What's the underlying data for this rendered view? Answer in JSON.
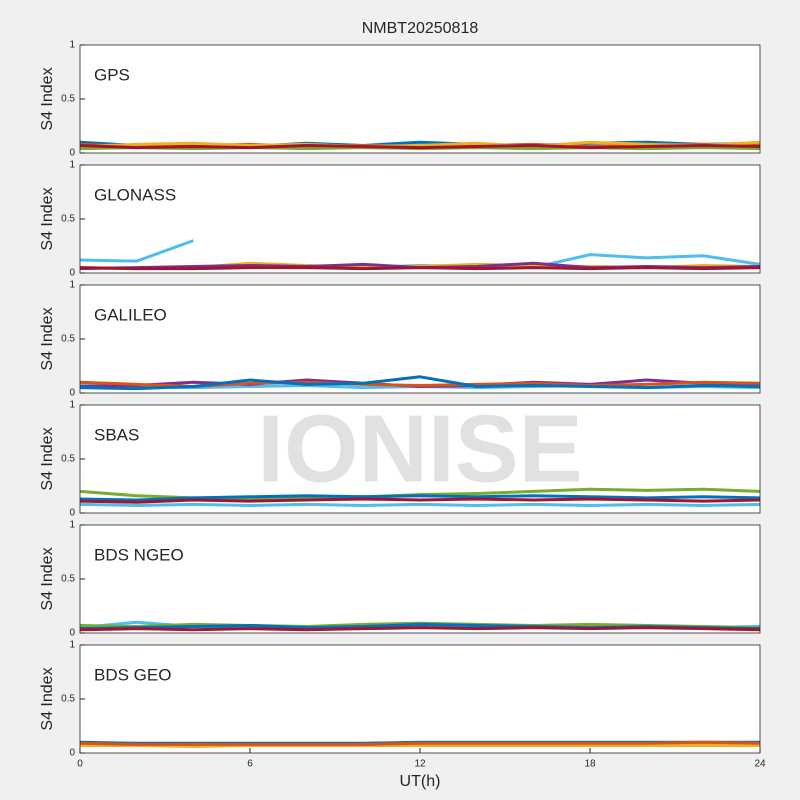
{
  "watermark": "IONISE",
  "chart_data": [
    {
      "type": "line",
      "title": "NMBT20250818",
      "annotation": "GPS",
      "ylabel": "S4 Index",
      "xlim": [
        0,
        24
      ],
      "ylim": [
        0,
        1
      ],
      "yticks": [
        0,
        0.5,
        1
      ],
      "x": [
        0,
        2,
        4,
        6,
        8,
        10,
        12,
        14,
        16,
        18,
        20,
        22,
        24
      ],
      "series": [
        {
          "color": "#0072BD",
          "values": [
            0.1,
            0.07,
            0.08,
            0.06,
            0.09,
            0.07,
            0.1,
            0.08,
            0.07,
            0.09,
            0.1,
            0.08,
            0.09
          ]
        },
        {
          "color": "#D95319",
          "values": [
            0.08,
            0.06,
            0.07,
            0.08,
            0.06,
            0.07,
            0.06,
            0.07,
            0.08,
            0.06,
            0.07,
            0.08,
            0.07
          ]
        },
        {
          "color": "#EDB120",
          "values": [
            0.06,
            0.08,
            0.09,
            0.07,
            0.08,
            0.06,
            0.07,
            0.09,
            0.06,
            0.1,
            0.08,
            0.07,
            0.1
          ]
        },
        {
          "color": "#77AC30",
          "values": [
            0.04,
            0.05,
            0.04,
            0.05,
            0.04,
            0.05,
            0.04,
            0.05,
            0.04,
            0.05,
            0.04,
            0.05,
            0.04
          ]
        },
        {
          "color": "#A2142F",
          "values": [
            0.07,
            0.05,
            0.06,
            0.05,
            0.07,
            0.06,
            0.05,
            0.06,
            0.07,
            0.05,
            0.06,
            0.07,
            0.06
          ]
        }
      ]
    },
    {
      "type": "line",
      "annotation": "GLONASS",
      "ylabel": "S4 Index",
      "xlim": [
        0,
        24
      ],
      "ylim": [
        0,
        1
      ],
      "yticks": [
        0,
        0.5,
        1
      ],
      "x": [
        0,
        2,
        4,
        6,
        8,
        10,
        12,
        14,
        16,
        18,
        20,
        22,
        24
      ],
      "series": [
        {
          "color": "#4DBEEE",
          "values": [
            0.12,
            0.11,
            0.3,
            null,
            0.06,
            0.05,
            0.07,
            0.06,
            0.05,
            0.17,
            0.14,
            0.16,
            0.08
          ]
        },
        {
          "color": "#EDB120",
          "values": [
            0.05,
            0.04,
            0.05,
            0.09,
            0.07,
            0.05,
            0.06,
            0.08,
            0.07,
            0.06,
            0.05,
            0.07,
            0.06
          ]
        },
        {
          "color": "#7E2F8E",
          "values": [
            0.04,
            0.05,
            0.06,
            0.07,
            0.06,
            0.08,
            0.05,
            0.06,
            0.09,
            0.05,
            0.06,
            0.05,
            0.06
          ]
        },
        {
          "color": "#A2142F",
          "values": [
            0.05,
            0.04,
            0.04,
            0.05,
            0.05,
            0.04,
            0.05,
            0.04,
            0.05,
            0.04,
            0.05,
            0.04,
            0.05
          ]
        }
      ]
    },
    {
      "type": "line",
      "annotation": "GALILEO",
      "ylabel": "S4 Index",
      "xlim": [
        0,
        24
      ],
      "ylim": [
        0,
        1
      ],
      "yticks": [
        0,
        0.5,
        1
      ],
      "x": [
        0,
        2,
        4,
        6,
        8,
        10,
        12,
        14,
        16,
        18,
        20,
        22,
        24
      ],
      "series": [
        {
          "color": "#4DBEEE",
          "values": [
            0.08,
            0.06,
            0.05,
            0.06,
            0.07,
            0.05,
            0.06,
            0.05,
            0.06,
            0.07,
            0.05,
            0.06,
            0.05
          ]
        },
        {
          "color": "#7E2F8E",
          "values": [
            0.06,
            0.07,
            0.1,
            0.08,
            0.12,
            0.09,
            0.06,
            0.07,
            0.1,
            0.08,
            0.12,
            0.09,
            0.08
          ]
        },
        {
          "color": "#D95319",
          "values": [
            0.1,
            0.08,
            0.06,
            0.09,
            0.1,
            0.08,
            0.07,
            0.08,
            0.09,
            0.07,
            0.08,
            0.1,
            0.09
          ]
        },
        {
          "color": "#0072BD",
          "values": [
            0.05,
            0.04,
            0.06,
            0.12,
            0.08,
            0.09,
            0.15,
            0.06,
            0.07,
            0.06,
            0.05,
            0.07,
            0.06
          ]
        }
      ]
    },
    {
      "type": "line",
      "annotation": "SBAS",
      "ylabel": "S4 Index",
      "xlim": [
        0,
        24
      ],
      "ylim": [
        0,
        1
      ],
      "yticks": [
        0,
        0.5,
        1
      ],
      "x": [
        0,
        2,
        4,
        6,
        8,
        10,
        12,
        14,
        16,
        18,
        20,
        22,
        24
      ],
      "series": [
        {
          "color": "#77AC30",
          "values": [
            0.2,
            0.16,
            0.14,
            0.13,
            0.14,
            0.15,
            0.17,
            0.18,
            0.2,
            0.22,
            0.21,
            0.22,
            0.2
          ]
        },
        {
          "color": "#0072BD",
          "values": [
            0.13,
            0.12,
            0.14,
            0.15,
            0.16,
            0.15,
            0.16,
            0.15,
            0.16,
            0.15,
            0.14,
            0.15,
            0.14
          ]
        },
        {
          "color": "#A2142F",
          "values": [
            0.11,
            0.1,
            0.12,
            0.11,
            0.12,
            0.13,
            0.12,
            0.13,
            0.12,
            0.13,
            0.12,
            0.11,
            0.12
          ]
        },
        {
          "color": "#4DBEEE",
          "values": [
            0.08,
            0.07,
            0.08,
            0.07,
            0.08,
            0.07,
            0.08,
            0.07,
            0.08,
            0.07,
            0.08,
            0.07,
            0.08
          ]
        }
      ]
    },
    {
      "type": "line",
      "annotation": "BDS NGEO",
      "ylabel": "S4 Index",
      "xlim": [
        0,
        24
      ],
      "ylim": [
        0,
        1
      ],
      "yticks": [
        0,
        0.5,
        1
      ],
      "x": [
        0,
        2,
        4,
        6,
        8,
        10,
        12,
        14,
        16,
        18,
        20,
        22,
        24
      ],
      "series": [
        {
          "color": "#4DBEEE",
          "values": [
            0.05,
            0.1,
            0.06,
            0.05,
            0.06,
            0.05,
            0.06,
            0.05,
            0.06,
            0.05,
            0.06,
            0.05,
            0.06
          ]
        },
        {
          "color": "#77AC30",
          "values": [
            0.07,
            0.06,
            0.08,
            0.07,
            0.06,
            0.08,
            0.09,
            0.08,
            0.07,
            0.08,
            0.07,
            0.06,
            0.05
          ]
        },
        {
          "color": "#0072BD",
          "values": [
            0.04,
            0.05,
            0.06,
            0.07,
            0.05,
            0.06,
            0.08,
            0.07,
            0.06,
            0.05,
            0.06,
            0.05,
            0.04
          ]
        },
        {
          "color": "#A2142F",
          "values": [
            0.03,
            0.04,
            0.03,
            0.04,
            0.03,
            0.04,
            0.05,
            0.04,
            0.05,
            0.04,
            0.05,
            0.04,
            0.03
          ]
        }
      ]
    },
    {
      "type": "line",
      "annotation": "BDS GEO",
      "ylabel": "S4 Index",
      "xlabel": "UT(h)",
      "xlim": [
        0,
        24
      ],
      "ylim": [
        0,
        1
      ],
      "yticks": [
        0,
        0.5,
        1
      ],
      "xticks": [
        0,
        6,
        12,
        18,
        24
      ],
      "x": [
        0,
        2,
        4,
        6,
        8,
        10,
        12,
        14,
        16,
        18,
        20,
        22,
        24
      ],
      "series": [
        {
          "color": "#0072BD",
          "values": [
            0.1,
            0.09,
            0.09,
            0.09,
            0.09,
            0.09,
            0.1,
            0.1,
            0.1,
            0.1,
            0.1,
            0.1,
            0.1
          ]
        },
        {
          "color": "#EDB120",
          "values": [
            0.07,
            0.07,
            0.06,
            0.07,
            0.07,
            0.07,
            0.07,
            0.07,
            0.07,
            0.07,
            0.07,
            0.07,
            0.07
          ]
        },
        {
          "color": "#D95319",
          "values": [
            0.09,
            0.08,
            0.08,
            0.08,
            0.08,
            0.08,
            0.09,
            0.09,
            0.09,
            0.09,
            0.09,
            0.1,
            0.09
          ]
        }
      ]
    }
  ]
}
